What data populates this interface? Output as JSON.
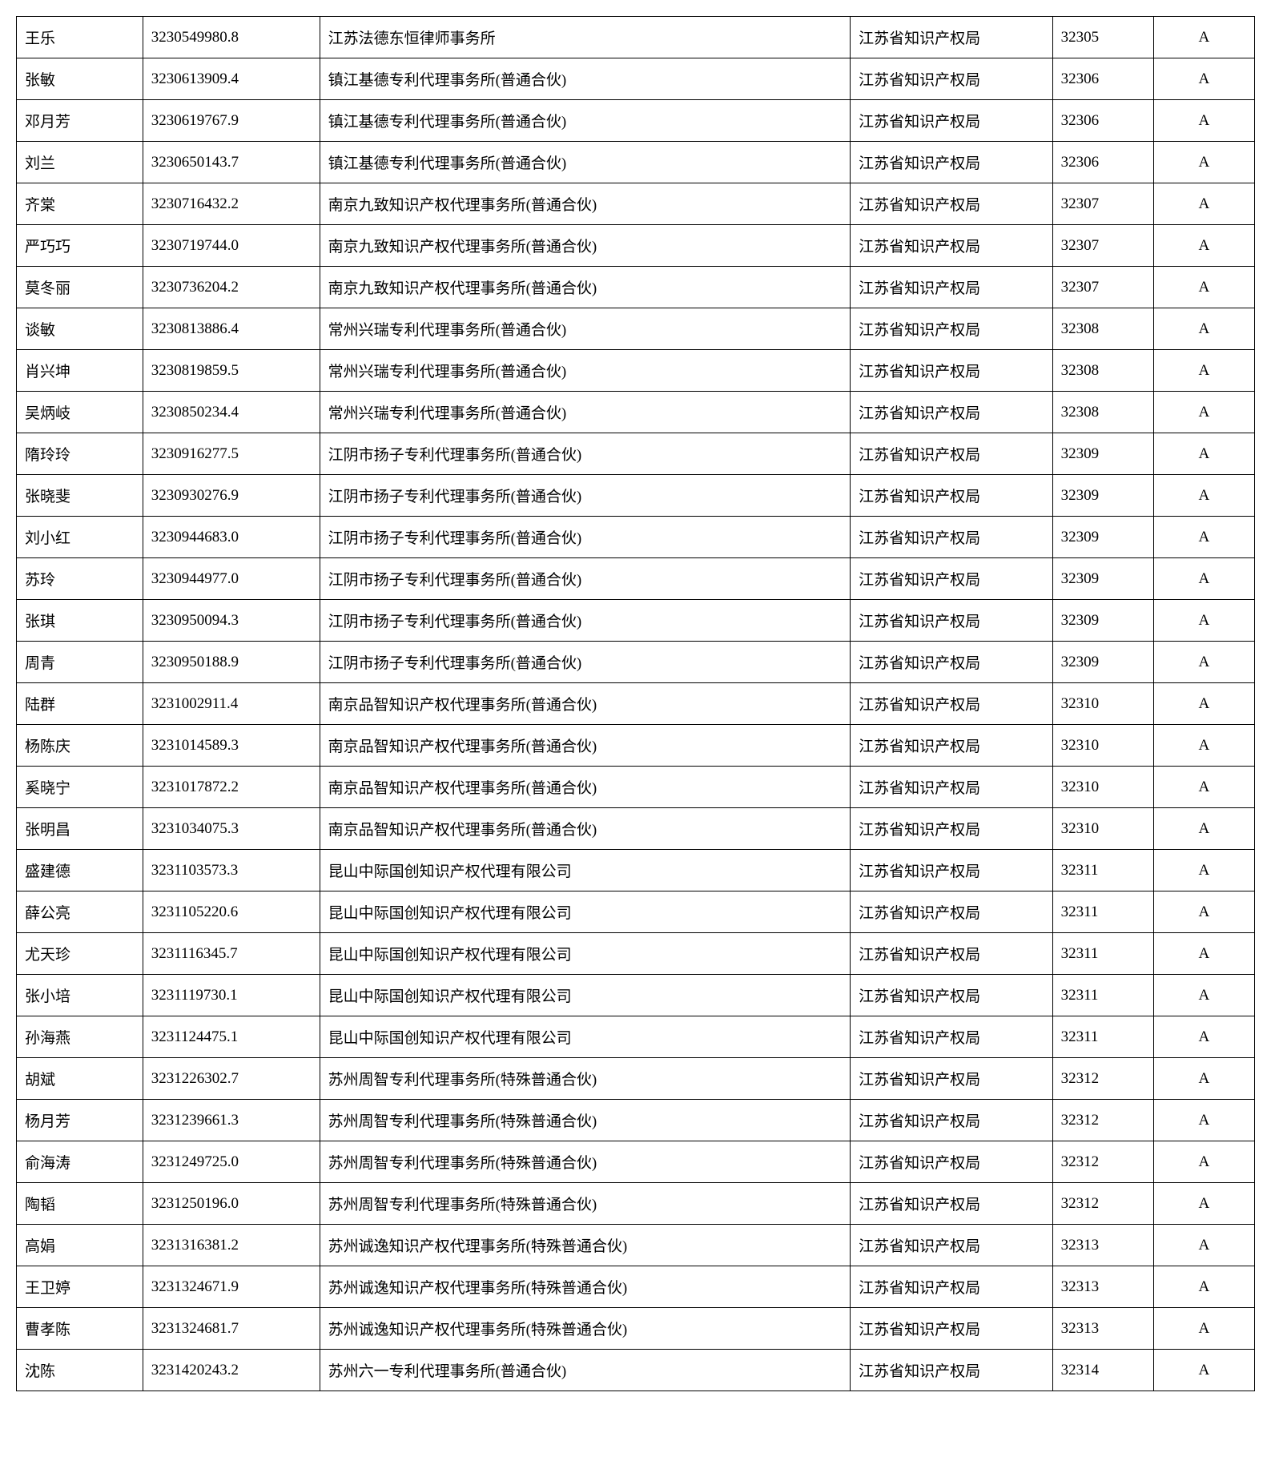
{
  "table": {
    "type": "table",
    "columns": [
      "name",
      "id",
      "agency",
      "authority",
      "code",
      "grade"
    ],
    "column_alignments": [
      "left",
      "left",
      "left",
      "left",
      "left",
      "center"
    ],
    "border_color": "#000000",
    "background_color": "#ffffff",
    "text_color": "#000000",
    "font_size": 19,
    "rows": [
      {
        "name": "王乐",
        "id": "3230549980.8",
        "agency": "江苏法德东恒律师事务所",
        "authority": "江苏省知识产权局",
        "code": "32305",
        "grade": "A"
      },
      {
        "name": "张敏",
        "id": "3230613909.4",
        "agency": "镇江基德专利代理事务所(普通合伙)",
        "authority": "江苏省知识产权局",
        "code": "32306",
        "grade": "A"
      },
      {
        "name": "邓月芳",
        "id": "3230619767.9",
        "agency": "镇江基德专利代理事务所(普通合伙)",
        "authority": "江苏省知识产权局",
        "code": "32306",
        "grade": "A"
      },
      {
        "name": "刘兰",
        "id": "3230650143.7",
        "agency": "镇江基德专利代理事务所(普通合伙)",
        "authority": "江苏省知识产权局",
        "code": "32306",
        "grade": "A"
      },
      {
        "name": "齐棠",
        "id": "3230716432.2",
        "agency": "南京九致知识产权代理事务所(普通合伙)",
        "authority": "江苏省知识产权局",
        "code": "32307",
        "grade": "A"
      },
      {
        "name": "严巧巧",
        "id": "3230719744.0",
        "agency": "南京九致知识产权代理事务所(普通合伙)",
        "authority": "江苏省知识产权局",
        "code": "32307",
        "grade": "A"
      },
      {
        "name": "莫冬丽",
        "id": "3230736204.2",
        "agency": "南京九致知识产权代理事务所(普通合伙)",
        "authority": "江苏省知识产权局",
        "code": "32307",
        "grade": "A"
      },
      {
        "name": "谈敏",
        "id": "3230813886.4",
        "agency": "常州兴瑞专利代理事务所(普通合伙)",
        "authority": "江苏省知识产权局",
        "code": "32308",
        "grade": "A"
      },
      {
        "name": "肖兴坤",
        "id": "3230819859.5",
        "agency": "常州兴瑞专利代理事务所(普通合伙)",
        "authority": "江苏省知识产权局",
        "code": "32308",
        "grade": "A"
      },
      {
        "name": "吴炳岐",
        "id": "3230850234.4",
        "agency": "常州兴瑞专利代理事务所(普通合伙)",
        "authority": "江苏省知识产权局",
        "code": "32308",
        "grade": "A"
      },
      {
        "name": "隋玲玲",
        "id": "3230916277.5",
        "agency": "江阴市扬子专利代理事务所(普通合伙)",
        "authority": "江苏省知识产权局",
        "code": "32309",
        "grade": "A"
      },
      {
        "name": "张晓斐",
        "id": "3230930276.9",
        "agency": "江阴市扬子专利代理事务所(普通合伙)",
        "authority": "江苏省知识产权局",
        "code": "32309",
        "grade": "A"
      },
      {
        "name": "刘小红",
        "id": "3230944683.0",
        "agency": "江阴市扬子专利代理事务所(普通合伙)",
        "authority": "江苏省知识产权局",
        "code": "32309",
        "grade": "A"
      },
      {
        "name": "苏玲",
        "id": "3230944977.0",
        "agency": "江阴市扬子专利代理事务所(普通合伙)",
        "authority": "江苏省知识产权局",
        "code": "32309",
        "grade": "A"
      },
      {
        "name": "张琪",
        "id": "3230950094.3",
        "agency": "江阴市扬子专利代理事务所(普通合伙)",
        "authority": "江苏省知识产权局",
        "code": "32309",
        "grade": "A"
      },
      {
        "name": "周青",
        "id": "3230950188.9",
        "agency": "江阴市扬子专利代理事务所(普通合伙)",
        "authority": "江苏省知识产权局",
        "code": "32309",
        "grade": "A"
      },
      {
        "name": "陆群",
        "id": "3231002911.4",
        "agency": "南京品智知识产权代理事务所(普通合伙)",
        "authority": "江苏省知识产权局",
        "code": "32310",
        "grade": "A"
      },
      {
        "name": "杨陈庆",
        "id": "3231014589.3",
        "agency": "南京品智知识产权代理事务所(普通合伙)",
        "authority": "江苏省知识产权局",
        "code": "32310",
        "grade": "A"
      },
      {
        "name": "奚晓宁",
        "id": "3231017872.2",
        "agency": "南京品智知识产权代理事务所(普通合伙)",
        "authority": "江苏省知识产权局",
        "code": "32310",
        "grade": "A"
      },
      {
        "name": "张明昌",
        "id": "3231034075.3",
        "agency": "南京品智知识产权代理事务所(普通合伙)",
        "authority": "江苏省知识产权局",
        "code": "32310",
        "grade": "A"
      },
      {
        "name": "盛建德",
        "id": "3231103573.3",
        "agency": "昆山中际国创知识产权代理有限公司",
        "authority": "江苏省知识产权局",
        "code": "32311",
        "grade": "A"
      },
      {
        "name": "薛公亮",
        "id": "3231105220.6",
        "agency": "昆山中际国创知识产权代理有限公司",
        "authority": "江苏省知识产权局",
        "code": "32311",
        "grade": "A"
      },
      {
        "name": "尤天珍",
        "id": "3231116345.7",
        "agency": "昆山中际国创知识产权代理有限公司",
        "authority": "江苏省知识产权局",
        "code": "32311",
        "grade": "A"
      },
      {
        "name": "张小培",
        "id": "3231119730.1",
        "agency": "昆山中际国创知识产权代理有限公司",
        "authority": "江苏省知识产权局",
        "code": "32311",
        "grade": "A"
      },
      {
        "name": "孙海燕",
        "id": "3231124475.1",
        "agency": "昆山中际国创知识产权代理有限公司",
        "authority": "江苏省知识产权局",
        "code": "32311",
        "grade": "A"
      },
      {
        "name": "胡斌",
        "id": "3231226302.7",
        "agency": "苏州周智专利代理事务所(特殊普通合伙)",
        "authority": "江苏省知识产权局",
        "code": "32312",
        "grade": "A"
      },
      {
        "name": "杨月芳",
        "id": "3231239661.3",
        "agency": "苏州周智专利代理事务所(特殊普通合伙)",
        "authority": "江苏省知识产权局",
        "code": "32312",
        "grade": "A"
      },
      {
        "name": "俞海涛",
        "id": "3231249725.0",
        "agency": "苏州周智专利代理事务所(特殊普通合伙)",
        "authority": "江苏省知识产权局",
        "code": "32312",
        "grade": "A"
      },
      {
        "name": "陶韬",
        "id": "3231250196.0",
        "agency": "苏州周智专利代理事务所(特殊普通合伙)",
        "authority": "江苏省知识产权局",
        "code": "32312",
        "grade": "A"
      },
      {
        "name": "高娟",
        "id": "3231316381.2",
        "agency": "苏州诚逸知识产权代理事务所(特殊普通合伙)",
        "authority": "江苏省知识产权局",
        "code": "32313",
        "grade": "A"
      },
      {
        "name": "王卫婷",
        "id": "3231324671.9",
        "agency": "苏州诚逸知识产权代理事务所(特殊普通合伙)",
        "authority": "江苏省知识产权局",
        "code": "32313",
        "grade": "A"
      },
      {
        "name": "曹孝陈",
        "id": "3231324681.7",
        "agency": "苏州诚逸知识产权代理事务所(特殊普通合伙)",
        "authority": "江苏省知识产权局",
        "code": "32313",
        "grade": "A"
      },
      {
        "name": "沈陈",
        "id": "3231420243.2",
        "agency": "苏州六一专利代理事务所(普通合伙)",
        "authority": "江苏省知识产权局",
        "code": "32314",
        "grade": "A"
      }
    ]
  }
}
